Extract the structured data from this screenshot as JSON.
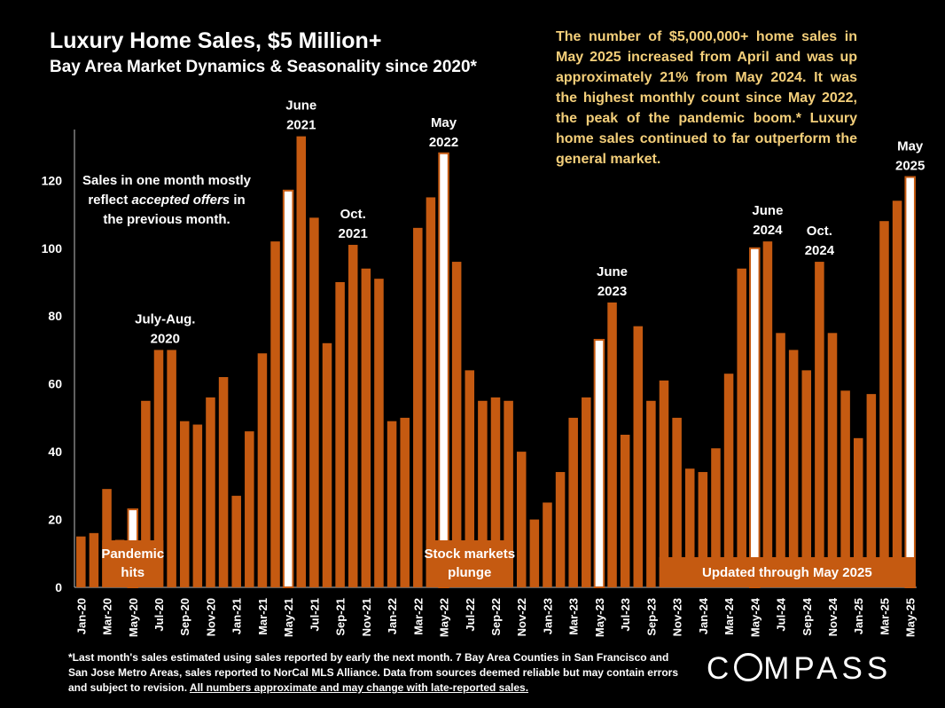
{
  "header": {
    "title": "Luxury Home Sales, $5 Million+",
    "subtitle": "Bay Area Market Dynamics & Seasonality since 2020*"
  },
  "commentary": "The number of $5,000,000+ home sales in May 2025 increased from April and was up approximately 21% from May 2024. It was the highest monthly count since May 2022, the peak of the pandemic boom.* Luxury home sales continued to far outperform the general market.",
  "footnote": {
    "text": "*Last month's sales estimated using sales reported by early the next month. 7 Bay Area Counties in San Francisco and San Jose Metro Areas, sales reported to NorCal MLS Alliance.  Data from sources deemed reliable but may contain errors and subject to revision. ",
    "underlined": "All numbers approximate and may change with late-reported sales."
  },
  "logo": {
    "before": "C",
    "after": "MPASS"
  },
  "colors": {
    "bar": "#c55a11",
    "highlight": "#ffffff",
    "background": "#000000",
    "commentary": "#f4cf7a"
  },
  "chart_data": {
    "type": "bar",
    "ylim": [
      0,
      135
    ],
    "yticks": [
      0,
      20,
      40,
      60,
      80,
      100,
      120
    ],
    "categories": [
      "Jan-20",
      "Feb-20",
      "Mar-20",
      "Apr-20",
      "May-20",
      "Jun-20",
      "Jul-20",
      "Aug-20",
      "Sep-20",
      "Oct-20",
      "Nov-20",
      "Dec-20",
      "Jan-21",
      "Feb-21",
      "Mar-21",
      "Apr-21",
      "May-21",
      "Jun-21",
      "Jul-21",
      "Aug-21",
      "Sep-21",
      "Oct-21",
      "Nov-21",
      "Dec-21",
      "Jan-22",
      "Feb-22",
      "Mar-22",
      "Apr-22",
      "May-22",
      "Jun-22",
      "Jul-22",
      "Aug-22",
      "Sep-22",
      "Oct-22",
      "Nov-22",
      "Dec-22",
      "Jan-23",
      "Feb-23",
      "Mar-23",
      "Apr-23",
      "May-23",
      "Jun-23",
      "Jul-23",
      "Aug-23",
      "Sep-23",
      "Oct-23",
      "Nov-23",
      "Dec-23",
      "Jan-24",
      "Feb-24",
      "Mar-24",
      "Apr-24",
      "May-24",
      "Jun-24",
      "Jul-24",
      "Aug-24",
      "Sep-24",
      "Oct-24",
      "Nov-24",
      "Dec-24",
      "Jan-25",
      "Feb-25",
      "Mar-25",
      "Apr-25",
      "May-25"
    ],
    "values": [
      15,
      16,
      29,
      14,
      23,
      55,
      70,
      70,
      49,
      48,
      56,
      62,
      27,
      46,
      69,
      102,
      117,
      133,
      109,
      72,
      90,
      101,
      94,
      91,
      49,
      50,
      106,
      115,
      128,
      96,
      64,
      55,
      56,
      55,
      40,
      20,
      25,
      34,
      50,
      56,
      73,
      84,
      45,
      77,
      55,
      61,
      50,
      35,
      34,
      41,
      63,
      94,
      100,
      102,
      75,
      70,
      64,
      96,
      75,
      58,
      44,
      57,
      108,
      114,
      121
    ],
    "highlighted": [
      "May-20",
      "May-21",
      "May-22",
      "May-23",
      "May-24",
      "May-25"
    ],
    "x_tick_labels": [
      "Jan-20",
      "Mar-20",
      "May-20",
      "Jul-20",
      "Sep-20",
      "Nov-20",
      "Jan-21",
      "Mar-21",
      "May-21",
      "Jul-21",
      "Sep-21",
      "Nov-21",
      "Jan-22",
      "Mar-22",
      "May-22",
      "Jul-22",
      "Sep-22",
      "Nov-22",
      "Jan-23",
      "Mar-23",
      "May-23",
      "Jul-23",
      "Sep-23",
      "Nov-23",
      "Jan-24",
      "Mar-24",
      "May-24",
      "Jul-24",
      "Sep-24",
      "Nov-24",
      "Jan-25",
      "Mar-25",
      "May-25"
    ],
    "peak_labels": [
      {
        "at": "Jul-20",
        "lines": [
          "July-Aug.",
          "2020"
        ]
      },
      {
        "at": "Jun-21",
        "lines": [
          "June",
          "2021"
        ]
      },
      {
        "at": "Oct-21",
        "lines": [
          "Oct.",
          "2021"
        ]
      },
      {
        "at": "May-22",
        "lines": [
          "May",
          "2022"
        ]
      },
      {
        "at": "Jun-23",
        "lines": [
          "June",
          "2023"
        ]
      },
      {
        "at": "Jun-24",
        "lines": [
          "June",
          "2024"
        ]
      },
      {
        "at": "Oct-24",
        "lines": [
          "Oct.",
          "2024"
        ]
      },
      {
        "at": "May-25",
        "lines": [
          "May",
          "2025"
        ]
      }
    ],
    "note": {
      "lines": [
        [
          {
            "t": "Sales in one month mostly"
          }
        ],
        [
          {
            "t": "reflect "
          },
          {
            "t": "accepted offers",
            "i": true
          },
          {
            "t": " in"
          }
        ],
        [
          {
            "t": "the previous month."
          }
        ]
      ]
    },
    "event_boxes": [
      {
        "from": "Mar-20",
        "to": "Jul-20",
        "lines": [
          "Pandemic",
          "hits"
        ]
      },
      {
        "from": "Apr-22",
        "to": "Oct-22",
        "lines": [
          "Stock markets",
          "plunge"
        ]
      },
      {
        "from": "Oct-23",
        "to": "May-25",
        "lines": [
          "Updated through May 2025"
        ]
      }
    ]
  }
}
